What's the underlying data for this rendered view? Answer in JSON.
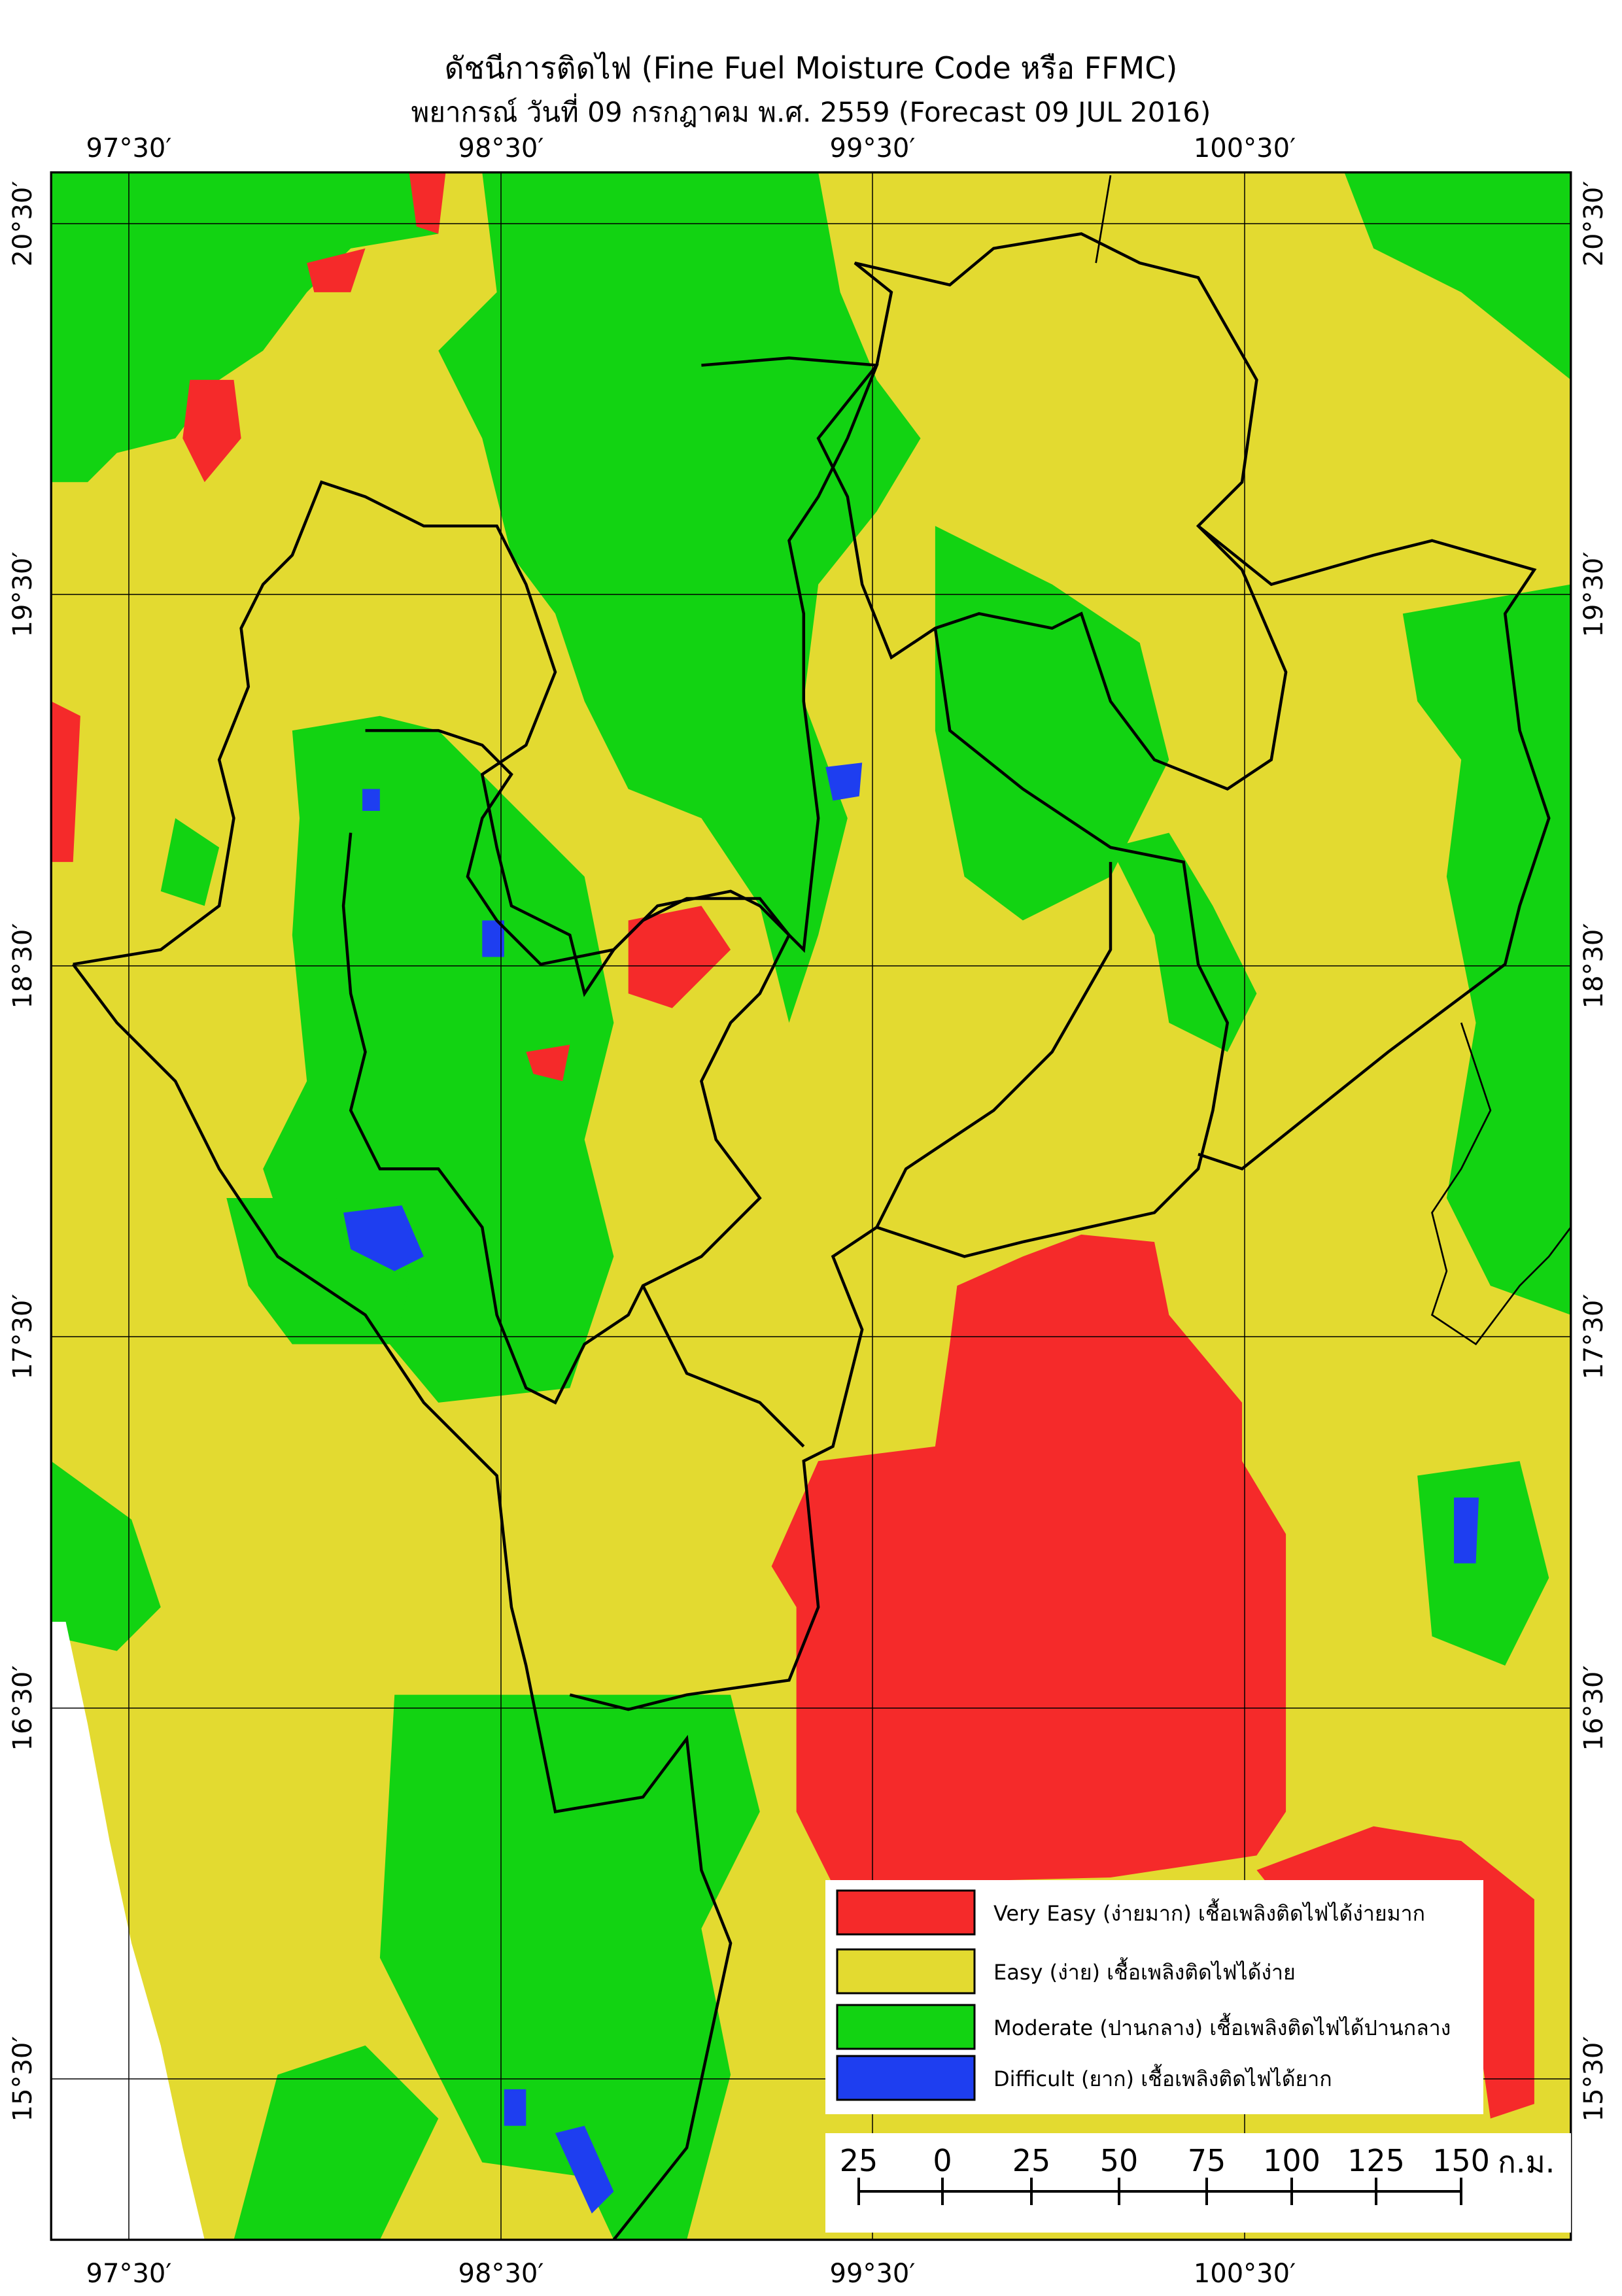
{
  "header": {
    "title": "ดัชนีการติดไฟ (Fine Fuel Moisture Code หรือ FFMC)",
    "subtitle": "พยากรณ์ วันที่ 09 กรกฎาคม พ.ศ. 2559 (Forecast 09 JUL 2016)"
  },
  "map": {
    "longitudes": [
      "97°30′",
      "98°30′",
      "99°30′",
      "100°30′"
    ],
    "latitudes": [
      "20°30′",
      "19°30′",
      "18°30′",
      "17°30′",
      "16°30′",
      "15°30′"
    ]
  },
  "legend": [
    {
      "label": "Very Easy (ง่ายมาก) เชื้อเพลิงติดไฟได้ง่ายมาก",
      "color": "#f52a2a"
    },
    {
      "label": "Easy (ง่าย) เชื้อเพลิงติดไฟได้ง่าย",
      "color": "#e3da30"
    },
    {
      "label": "Moderate (ปานกลาง) เชื้อเพลิงติดไฟได้ปานกลาง",
      "color": "#12d312"
    },
    {
      "label": "Difficult (ยาก) เชื้อเพลิงติดไฟได้ยาก",
      "color": "#1e3ef0"
    }
  ],
  "scale_bar": {
    "labels": [
      "25",
      "0",
      "25",
      "50",
      "75",
      "100",
      "125",
      "150"
    ],
    "unit": "ก.ม."
  }
}
